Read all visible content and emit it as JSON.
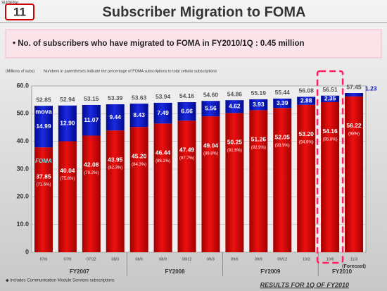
{
  "corner_label": "SUDENo",
  "page_number": "11",
  "chart_data": {
    "type": "stacked-bar",
    "title": "Subscriber Migration to FOMA",
    "highlight": "• No. of subscribers who have migrated to FOMA in FY2010/1Q : 0.45 million",
    "unit_label": "(Millions of subs)",
    "note": "Numbers in parentheses indicate the percentage of FOMA subscriptions to total cellular subscriptions",
    "categories": [
      "07/6",
      "07/9",
      "07/12",
      "08/3",
      "08/6",
      "08/9",
      "08/12",
      "09/3",
      "09/6",
      "09/9",
      "09/12",
      "10/3",
      "10/6",
      "11/3"
    ],
    "forecast_label": "(Forecast)",
    "fiscal_years": [
      "FY2007",
      "FY2008",
      "FY2009",
      "FY2010"
    ],
    "series": [
      {
        "name": "FOMA",
        "color": "#d40000",
        "values": [
          37.85,
          40.04,
          42.08,
          43.95,
          45.2,
          46.44,
          47.49,
          49.04,
          50.25,
          51.26,
          52.05,
          53.2,
          54.16,
          56.22
        ],
        "value_labels": [
          "37.85",
          "40.04",
          "42.08",
          "43.95",
          "45.20",
          "46.44",
          "47.49",
          "49.04",
          "50.25",
          "51.26",
          "52.05",
          "53.20",
          "54.16",
          "56.22"
        ],
        "shares": [
          71.6,
          75.6,
          79.2,
          82.3,
          84.3,
          86.1,
          87.7,
          89.8,
          91.6,
          92.9,
          93.9,
          94.9,
          95.8,
          98
        ],
        "share_labels": [
          "(71.6%)",
          "(75.6%)",
          "(79.2%)",
          "(82.3%)",
          "(84.3%)",
          "(86.1%)",
          "(87.7%)",
          "(89.8%)",
          "(91.6%)",
          "(92.9%)",
          "(93.9%)",
          "(94.9%)",
          "(95.8%)",
          "(98%)"
        ]
      },
      {
        "name": "mova",
        "color": "#0a14c8",
        "values": [
          14.99,
          12.9,
          11.07,
          9.44,
          8.43,
          7.49,
          6.66,
          5.56,
          4.62,
          3.93,
          3.39,
          2.88,
          2.35,
          1.23
        ],
        "value_labels": [
          "14.99",
          "12.90",
          "11.07",
          "9.44",
          "8.43",
          "7.49",
          "6.66",
          "5.56",
          "4.62",
          "3.93",
          "3.39",
          "2.88",
          "2.35",
          "1.23"
        ]
      }
    ],
    "totals": [
      52.85,
      52.94,
      53.15,
      53.39,
      53.63,
      53.94,
      54.16,
      54.6,
      54.86,
      55.19,
      55.44,
      56.08,
      56.51,
      57.45
    ],
    "total_labels": [
      "52.85",
      "52.94",
      "53.15",
      "53.39",
      "53.63",
      "53.94",
      "54.16",
      "54.60",
      "54.86",
      "55.19",
      "55.44",
      "56.08",
      "56.51",
      "57.45"
    ],
    "ylim": [
      0,
      60
    ],
    "yticks": [
      0,
      {
        "value": 10,
        "label": "10.0"
      },
      {
        "value": 20,
        "label": "20.0"
      },
      {
        "value": 30,
        "label": "30.0"
      },
      {
        "value": 40,
        "label": "40.0"
      },
      {
        "value": 50,
        "label": "50.0"
      },
      {
        "value": 60,
        "label": "60.0"
      }
    ],
    "grid": true,
    "footnote": "◆ Includes Communication Module Services subscriptions",
    "footer": "RESULTS FOR 1Q OF FY2010"
  }
}
